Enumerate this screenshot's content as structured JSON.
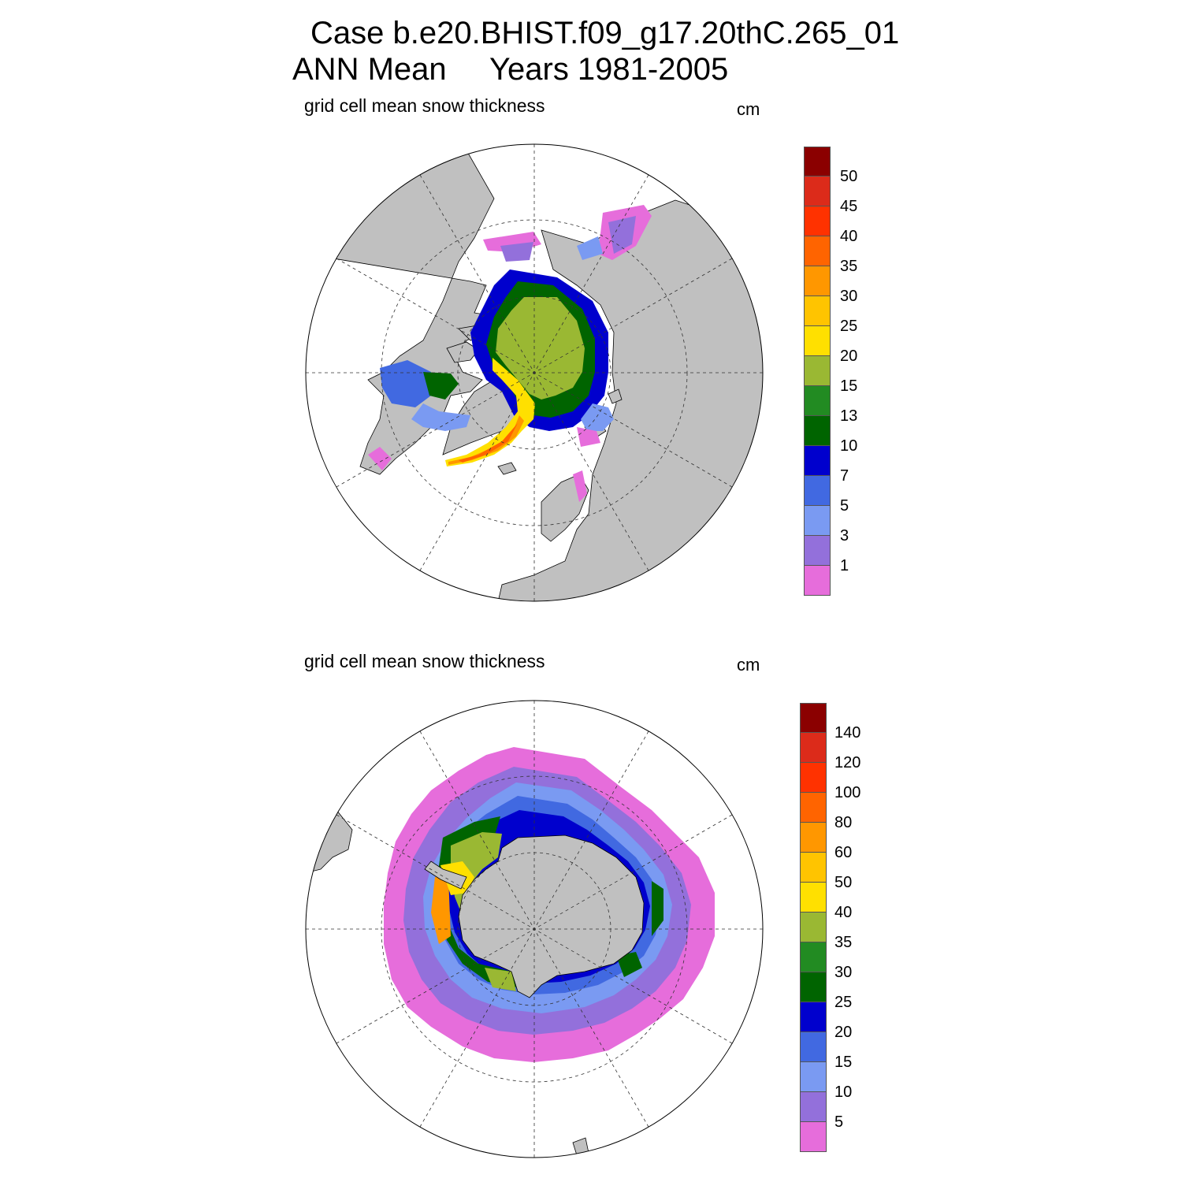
{
  "title": {
    "line1": "Case b.e20.BHIST.f09_g17.20thC.265_01",
    "line2a": "ANN Mean",
    "line2b": "Years 1981-2005"
  },
  "colors": {
    "land": "#c0c0c0",
    "ocean": "#ffffff",
    "scale": [
      "#e66ddb",
      "#9370db",
      "#7a9af2",
      "#4169e1",
      "#0000cd",
      "#006400",
      "#228b22",
      "#9ab833",
      "#ffe000",
      "#ffc400",
      "#ff9700",
      "#ff6400",
      "#ff3200",
      "#dc2b1a",
      "#8b0000"
    ]
  },
  "panels": [
    {
      "id": "nh",
      "label": "grid cell mean snow thickness",
      "units": "cm",
      "hemisphere": "north",
      "levels": [
        "1",
        "3",
        "5",
        "7",
        "10",
        "13",
        "15",
        "20",
        "25",
        "30",
        "35",
        "40",
        "45",
        "50"
      ]
    },
    {
      "id": "sh",
      "label": "grid cell mean snow thickness",
      "units": "cm",
      "hemisphere": "south",
      "levels": [
        "5",
        "10",
        "15",
        "20",
        "25",
        "30",
        "35",
        "40",
        "50",
        "60",
        "80",
        "100",
        "120",
        "140"
      ]
    }
  ]
}
